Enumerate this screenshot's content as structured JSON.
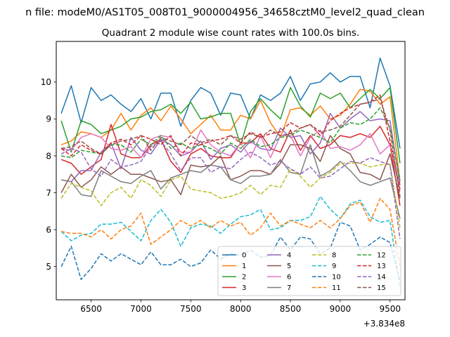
{
  "chart_data": {
    "type": "line",
    "suptitle": "n file: modeM0/AS1T05_008T01_9000004956_34658cztM0_level2_quad_clean",
    "title": "Quadrant 2 module wise count rates with 100.0s bins.",
    "xlabel": "",
    "ylabel": "",
    "x_offset_label": "+3.834e8",
    "xlim": [
      6150,
      9650
    ],
    "ylim": [
      4.1,
      11.1
    ],
    "x_ticks": [
      6500,
      7000,
      7500,
      8000,
      8500,
      9000,
      9500
    ],
    "x_tick_labels": [
      "6500",
      "7000",
      "7500",
      "8000",
      "8500",
      "9000",
      "9500"
    ],
    "y_ticks": [
      5,
      6,
      7,
      8,
      9,
      10
    ],
    "y_tick_labels": [
      "5",
      "6",
      "7",
      "8",
      "9",
      "10"
    ],
    "legend_position": "lower-right",
    "legend_columns": 4,
    "x": [
      6200,
      6300,
      6400,
      6500,
      6600,
      6700,
      6800,
      6900,
      7000,
      7100,
      7200,
      7300,
      7400,
      7500,
      7600,
      7700,
      7800,
      7900,
      8000,
      8100,
      8200,
      8300,
      8400,
      8500,
      8600,
      8700,
      8800,
      8900,
      9000,
      9100,
      9200,
      9300,
      9400,
      9500,
      9600
    ],
    "series": [
      {
        "name": "0",
        "color": "#1f77b4",
        "dash": "solid",
        "values": [
          9.15,
          9.9,
          8.9,
          9.85,
          9.5,
          9.65,
          9.4,
          9.2,
          9.55,
          9.0,
          9.7,
          9.7,
          8.8,
          9.5,
          9.85,
          9.7,
          9.1,
          9.7,
          9.65,
          9.0,
          9.65,
          9.5,
          9.7,
          10.15,
          9.5,
          9.95,
          10.0,
          10.25,
          10.0,
          10.15,
          10.15,
          9.3,
          10.65,
          9.9,
          8.2
        ]
      },
      {
        "name": "1",
        "color": "#ff7f0e",
        "dash": "solid",
        "values": [
          8.3,
          8.4,
          8.65,
          8.6,
          8.5,
          8.7,
          9.15,
          8.7,
          9.1,
          9.3,
          8.95,
          9.35,
          9.0,
          8.6,
          8.85,
          9.1,
          8.7,
          8.7,
          9.1,
          9.0,
          9.5,
          8.9,
          8.5,
          9.25,
          9.3,
          9.1,
          9.35,
          9.0,
          9.1,
          9.4,
          9.8,
          9.75,
          9.4,
          9.6,
          7.3
        ]
      },
      {
        "name": "2",
        "color": "#2ca02c",
        "dash": "solid",
        "values": [
          8.95,
          8.1,
          8.95,
          8.85,
          8.6,
          8.7,
          8.8,
          9.0,
          9.05,
          9.2,
          9.25,
          9.4,
          9.15,
          9.45,
          9.0,
          9.05,
          9.15,
          9.15,
          8.3,
          9.2,
          9.55,
          9.25,
          9.0,
          9.85,
          9.35,
          9.05,
          9.7,
          9.55,
          9.7,
          9.3,
          9.55,
          9.8,
          9.55,
          9.85,
          7.8
        ]
      },
      {
        "name": "3",
        "color": "#d62728",
        "dash": "solid",
        "values": [
          7.9,
          7.8,
          7.5,
          7.7,
          7.9,
          8.85,
          8.05,
          7.95,
          7.95,
          8.3,
          8.45,
          7.85,
          7.55,
          8.05,
          8.2,
          8.0,
          7.95,
          7.95,
          8.35,
          8.35,
          8.6,
          8.2,
          8.1,
          8.7,
          8.15,
          8.55,
          8.2,
          8.3,
          8.55,
          8.5,
          8.6,
          8.5,
          8.8,
          8.3,
          6.65
        ]
      },
      {
        "name": "4",
        "color": "#9467bd",
        "dash": "solid",
        "values": [
          7.35,
          7.3,
          7.6,
          7.6,
          8.1,
          8.35,
          7.65,
          8.5,
          8.15,
          8.05,
          8.45,
          8.3,
          8.0,
          8.1,
          8.4,
          7.9,
          8.2,
          8.3,
          8.1,
          8.4,
          8.2,
          8.15,
          8.75,
          8.5,
          8.55,
          8.05,
          8.35,
          9.15,
          8.75,
          9.0,
          9.2,
          8.95,
          9.0,
          8.95,
          7.2
        ]
      },
      {
        "name": "5",
        "color": "#8c564b",
        "dash": "solid",
        "values": [
          7.0,
          7.5,
          7.15,
          7.35,
          7.7,
          7.5,
          7.7,
          7.5,
          7.5,
          7.4,
          7.3,
          7.35,
          6.95,
          7.75,
          7.7,
          7.75,
          8.0,
          7.35,
          7.45,
          7.6,
          7.6,
          7.5,
          7.8,
          8.3,
          8.3,
          8.2,
          7.85,
          8.55,
          8.2,
          8.05,
          7.55,
          7.5,
          7.35,
          8.05,
          6.85
        ]
      },
      {
        "name": "6",
        "color": "#e377c2",
        "dash": "solid",
        "values": [
          8.2,
          8.15,
          8.5,
          8.6,
          8.5,
          8.2,
          8.15,
          8.25,
          7.95,
          8.45,
          8.55,
          8.5,
          8.1,
          8.1,
          8.7,
          8.3,
          8.1,
          8.0,
          8.35,
          7.95,
          8.55,
          7.95,
          8.55,
          8.55,
          8.0,
          8.5,
          8.7,
          8.2,
          8.25,
          8.15,
          8.3,
          8.6,
          8.05,
          8.3,
          7.05
        ]
      },
      {
        "name": "7",
        "color": "#7f7f7f",
        "dash": "solid",
        "values": [
          7.35,
          7.3,
          6.95,
          6.9,
          7.6,
          7.45,
          7.3,
          7.25,
          7.45,
          7.6,
          7.1,
          7.4,
          7.5,
          7.6,
          7.55,
          7.75,
          7.7,
          7.35,
          7.25,
          7.45,
          7.45,
          7.5,
          7.9,
          7.55,
          7.5,
          8.3,
          7.45,
          7.6,
          7.85,
          7.6,
          7.3,
          7.2,
          7.3,
          7.4,
          6.3
        ]
      },
      {
        "name": "8",
        "color": "#bcbd22",
        "dash": "dashed",
        "values": [
          6.85,
          7.25,
          7.15,
          7.05,
          6.65,
          7.0,
          7.15,
          6.85,
          7.35,
          7.2,
          6.9,
          7.35,
          7.45,
          7.1,
          7.05,
          7.0,
          6.85,
          6.9,
          7.0,
          7.2,
          6.95,
          7.2,
          7.15,
          7.65,
          7.45,
          7.15,
          7.4,
          7.55,
          7.8,
          7.8,
          7.8,
          7.7,
          7.75,
          7.8,
          6.05
        ]
      },
      {
        "name": "9",
        "color": "#17becf",
        "dash": "dashed",
        "values": [
          5.95,
          5.7,
          5.85,
          5.9,
          6.15,
          6.15,
          6.2,
          5.95,
          5.7,
          6.25,
          6.55,
          6.2,
          5.55,
          6.05,
          6.15,
          6.1,
          5.9,
          6.15,
          6.35,
          6.4,
          6.55,
          6.0,
          6.05,
          6.25,
          6.25,
          6.35,
          6.9,
          6.55,
          6.3,
          6.7,
          6.8,
          6.35,
          6.2,
          6.25,
          4.45
        ]
      },
      {
        "name": "10",
        "color": "#1f77b4",
        "dash": "dashed",
        "values": [
          5.0,
          5.55,
          4.65,
          4.95,
          5.35,
          5.15,
          5.35,
          5.2,
          5.05,
          5.4,
          5.05,
          5.05,
          5.2,
          5.0,
          5.1,
          5.45,
          5.2,
          5.35,
          5.3,
          5.45,
          5.25,
          5.3,
          5.8,
          5.45,
          5.8,
          5.75,
          5.35,
          5.5,
          6.2,
          6.1,
          5.45,
          5.6,
          5.8,
          5.65,
          4.6
        ]
      },
      {
        "name": "11",
        "color": "#ff7f0e",
        "dash": "dashed",
        "values": [
          5.95,
          5.9,
          5.9,
          5.8,
          6.0,
          5.75,
          6.0,
          6.1,
          6.45,
          5.6,
          5.8,
          6.0,
          6.25,
          6.1,
          6.25,
          6.05,
          6.25,
          6.1,
          6.2,
          5.85,
          6.05,
          6.45,
          6.1,
          6.25,
          6.15,
          6.05,
          6.25,
          6.05,
          6.3,
          6.65,
          6.75,
          6.2,
          6.85,
          6.55,
          5.0
        ]
      },
      {
        "name": "12",
        "color": "#2ca02c",
        "dash": "dashed",
        "values": [
          8.0,
          7.95,
          8.15,
          8.1,
          8.05,
          8.3,
          8.3,
          8.1,
          8.45,
          8.3,
          8.55,
          8.2,
          8.35,
          8.2,
          8.3,
          8.2,
          8.05,
          8.35,
          8.2,
          8.45,
          8.25,
          8.3,
          8.5,
          8.55,
          8.7,
          8.6,
          8.5,
          8.35,
          8.75,
          8.9,
          8.85,
          9.0,
          9.3,
          8.75,
          7.35
        ]
      },
      {
        "name": "13",
        "color": "#d62728",
        "dash": "dashed",
        "values": [
          8.2,
          8.0,
          8.3,
          8.15,
          8.05,
          8.35,
          8.45,
          8.3,
          8.55,
          8.45,
          8.3,
          8.55,
          8.0,
          8.35,
          8.3,
          8.4,
          8.45,
          8.55,
          8.35,
          8.65,
          8.5,
          8.6,
          8.65,
          8.9,
          8.75,
          8.85,
          8.55,
          8.95,
          9.15,
          9.3,
          9.4,
          9.45,
          9.65,
          8.4,
          7.1
        ]
      },
      {
        "name": "14",
        "color": "#9467bd",
        "dash": "dashed",
        "values": [
          8.05,
          8.2,
          8.1,
          7.65,
          7.45,
          7.9,
          7.7,
          7.75,
          7.85,
          8.25,
          8.4,
          8.05,
          7.6,
          7.95,
          7.95,
          7.55,
          7.7,
          7.65,
          7.9,
          8.1,
          7.95,
          7.75,
          7.85,
          7.65,
          7.5,
          7.7,
          7.4,
          7.45,
          7.65,
          7.85,
          7.8,
          7.95,
          7.85,
          7.75,
          5.75
        ]
      },
      {
        "name": "15",
        "color": "#8c564b",
        "dash": "dashed",
        "values": [
          8.2,
          8.25,
          8.4,
          8.2,
          8.05,
          8.3,
          8.4,
          8.45,
          8.55,
          8.15,
          8.5,
          8.4,
          8.3,
          8.55,
          8.35,
          8.45,
          8.3,
          8.55,
          8.45,
          8.6,
          8.5,
          8.7,
          8.55,
          8.6,
          8.75,
          8.85,
          8.65,
          8.7,
          8.8,
          9.1,
          9.4,
          9.45,
          9.55,
          8.7,
          6.9
        ]
      }
    ]
  }
}
